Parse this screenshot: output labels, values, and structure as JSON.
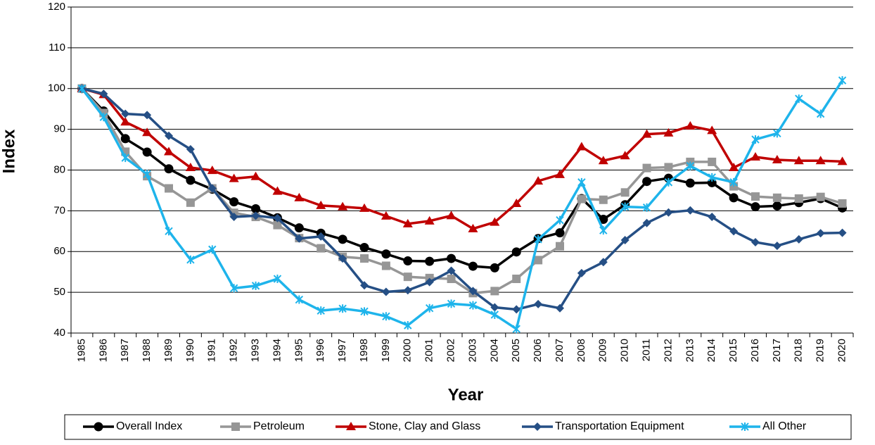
{
  "chart_data": {
    "type": "line",
    "x_label": "Year",
    "y_label": "Index",
    "categories": [
      "1985",
      "1986",
      "1987",
      "1988",
      "1989",
      "1990",
      "1991",
      "1992",
      "1993",
      "1994",
      "1995",
      "1996",
      "1997",
      "1998",
      "1999",
      "2000",
      "2001",
      "2002",
      "2003",
      "2004",
      "2005",
      "2006",
      "2007",
      "2008",
      "2009",
      "2010",
      "2011",
      "2012",
      "2013",
      "2014",
      "2015",
      "2016",
      "2017",
      "2018",
      "2019",
      "2020"
    ],
    "ylim": [
      40,
      120
    ],
    "yticks": [
      40,
      50,
      60,
      70,
      80,
      90,
      100,
      110,
      120
    ],
    "grid": true,
    "legend": "bottom",
    "series": [
      {
        "name": "Overall Index",
        "color": "#000000",
        "marker": "circle",
        "values": [
          100,
          94.5,
          87.7,
          84.4,
          80.3,
          77.5,
          75.3,
          72.2,
          70.5,
          68.3,
          65.8,
          64.5,
          63,
          61,
          59.4,
          57.7,
          57.6,
          58.3,
          56.4,
          56,
          59.9,
          63.2,
          64.6,
          73,
          67.9,
          71.5,
          77.2,
          78,
          76.8,
          76.9,
          73.2,
          71,
          71.2,
          72,
          73,
          70.7
        ]
      },
      {
        "name": "Petroleum",
        "color": "#969696",
        "marker": "square",
        "values": [
          100,
          94,
          84.5,
          78.5,
          75.5,
          72,
          75.5,
          69.5,
          68.5,
          66.5,
          63.3,
          60.8,
          58.7,
          58.3,
          56.5,
          53.8,
          53.5,
          53.3,
          49.8,
          50.3,
          53.3,
          57.9,
          61.3,
          72.9,
          72.7,
          74.5,
          80.5,
          80.7,
          82,
          82,
          76,
          73.5,
          73.2,
          73,
          73.4,
          71.8
        ]
      },
      {
        "name": "Stone, Clay and Glass",
        "color": "#c00000",
        "marker": "triangle",
        "values": [
          100,
          98.5,
          91.8,
          89.2,
          84.5,
          80.6,
          79.9,
          77.9,
          78.4,
          74.8,
          73.2,
          71.3,
          71,
          70.6,
          68.7,
          66.8,
          67.5,
          68.8,
          65.6,
          67.2,
          71.8,
          77.3,
          78.9,
          85.7,
          82.3,
          83.5,
          88.8,
          89.1,
          90.8,
          89.7,
          80.6,
          83.2,
          82.5,
          82.3,
          82.3,
          82.1
        ]
      },
      {
        "name": "Transportation Equipment",
        "color": "#254f85",
        "marker": "diamond",
        "values": [
          100,
          98.7,
          93.8,
          93.5,
          88.4,
          85.1,
          75.5,
          68.5,
          68.8,
          68.2,
          63.2,
          63.7,
          58.3,
          51.7,
          50.1,
          50.5,
          52.5,
          55.3,
          50.3,
          46.3,
          45.8,
          47.1,
          46.1,
          54.7,
          57.4,
          62.8,
          67,
          69.6,
          70.1,
          68.5,
          65,
          62.3,
          61.4,
          63,
          64.5,
          64.6
        ]
      },
      {
        "name": "All Other",
        "color": "#1eb4eb",
        "marker": "star",
        "values": [
          100,
          93,
          83,
          79,
          65,
          58,
          60.5,
          51,
          51.6,
          53.3,
          48.2,
          45.5,
          46,
          45.3,
          44.1,
          41.9,
          46.1,
          47.2,
          46.8,
          44.5,
          41,
          63,
          67.7,
          77,
          65.2,
          71,
          70.8,
          77,
          81,
          78.2,
          77,
          87.5,
          89,
          97.5,
          93.8,
          102
        ]
      }
    ]
  }
}
